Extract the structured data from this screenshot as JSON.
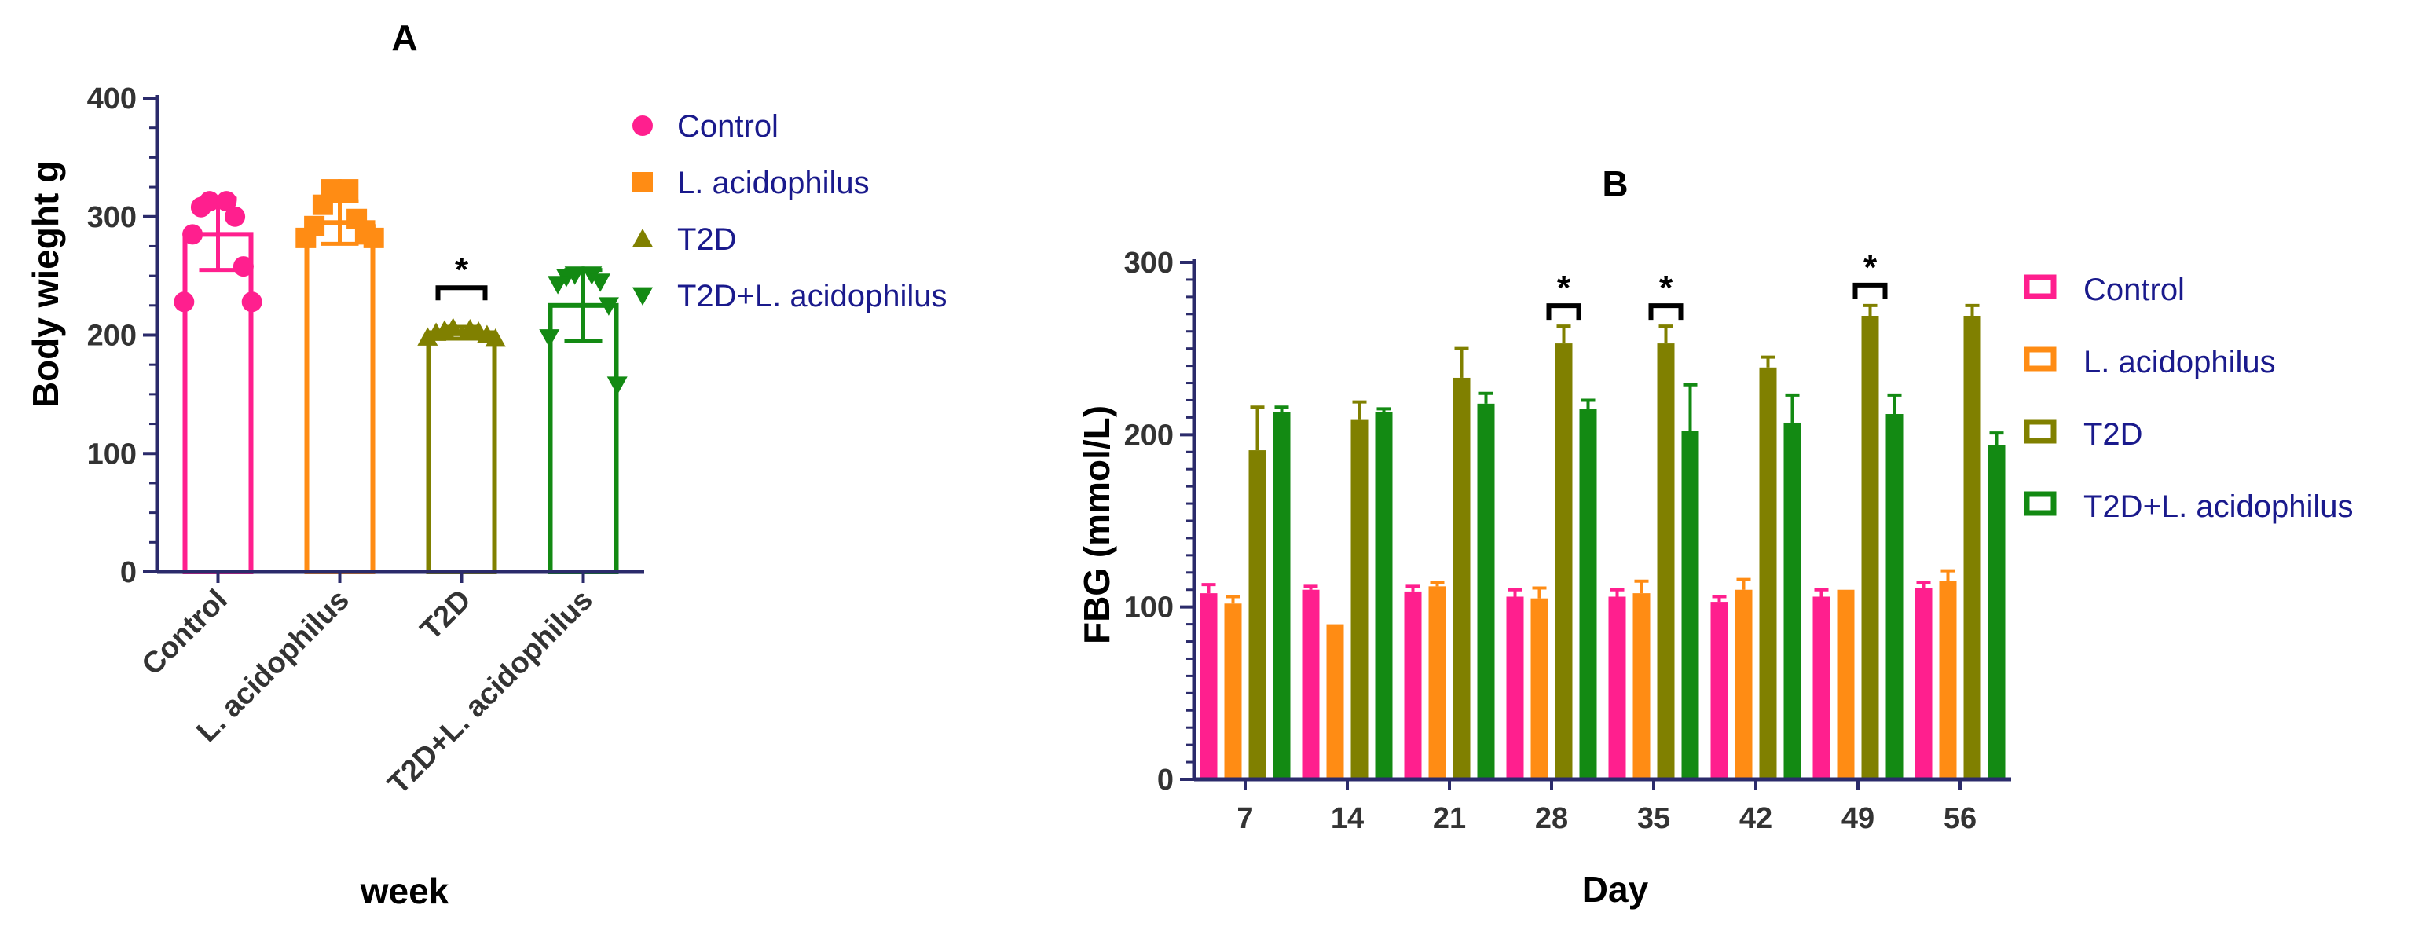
{
  "colors": {
    "Control": "#ff1f8e",
    "L. acidophilus": "#ff8c14",
    "T2D": "#808000",
    "T2D+L. acidophilus": "#138a13",
    "axis": "#2b2b6b"
  },
  "chart_data": [
    {
      "panel": "A",
      "type": "bar",
      "title": "A",
      "xlabel": "week",
      "ylabel": "Body wieght g",
      "ylim": [
        0,
        400
      ],
      "yticks": [
        0,
        100,
        200,
        300,
        400
      ],
      "categories": [
        "Control",
        "L. acidophilus",
        "T2D",
        "T2D+L. acidophilus"
      ],
      "values": [
        285,
        295,
        202,
        225
      ],
      "sd": [
        30,
        18,
        5,
        30
      ],
      "markers": [
        "circle",
        "square",
        "triangle-up",
        "triangle-down"
      ],
      "points": [
        [
          313,
          313,
          308,
          300,
          285,
          258,
          228,
          228
        ],
        [
          323,
          323,
          310,
          298,
          292,
          285,
          282,
          282
        ],
        [
          206,
          205,
          204,
          203,
          202,
          200,
          198,
          197
        ],
        [
          251,
          251,
          249,
          245,
          243,
          225,
          198,
          158
        ]
      ],
      "significance": [
        {
          "category": "T2D",
          "label": "*",
          "y": 240
        }
      ],
      "legend": [
        "Control",
        "L. acidophilus",
        "T2D",
        "T2D+L. acidophilus"
      ]
    },
    {
      "panel": "B",
      "type": "bar",
      "title": "B",
      "xlabel": "Day",
      "ylabel": "FBG (mmol/L)",
      "ylim": [
        0,
        300
      ],
      "yticks": [
        0,
        100,
        200,
        300
      ],
      "categories": [
        "7",
        "14",
        "21",
        "28",
        "35",
        "42",
        "49",
        "56"
      ],
      "series": [
        {
          "name": "Control",
          "values": [
            108,
            110,
            109,
            106,
            106,
            103,
            106,
            111
          ],
          "err": [
            5,
            2,
            3,
            4,
            4,
            3,
            4,
            3
          ]
        },
        {
          "name": "L. acidophilus",
          "values": [
            102,
            90,
            112,
            105,
            108,
            110,
            110,
            115
          ],
          "err": [
            4,
            0,
            2,
            6,
            7,
            6,
            0,
            6
          ]
        },
        {
          "name": "T2D",
          "values": [
            191,
            209,
            233,
            253,
            253,
            239,
            269,
            269
          ],
          "err": [
            25,
            10,
            17,
            10,
            10,
            6,
            6,
            6
          ]
        },
        {
          "name": "T2D+L. acidophilus",
          "values": [
            213,
            213,
            218,
            215,
            202,
            207,
            212,
            194
          ],
          "err": [
            3,
            2,
            6,
            5,
            27,
            16,
            11,
            7
          ]
        }
      ],
      "significance": [
        {
          "category": "28",
          "label": "*"
        },
        {
          "category": "35",
          "label": "*"
        },
        {
          "category": "49",
          "label": "*"
        }
      ],
      "legend": [
        "Control",
        "L. acidophilus",
        "T2D",
        "T2D+L. acidophilus"
      ]
    }
  ]
}
